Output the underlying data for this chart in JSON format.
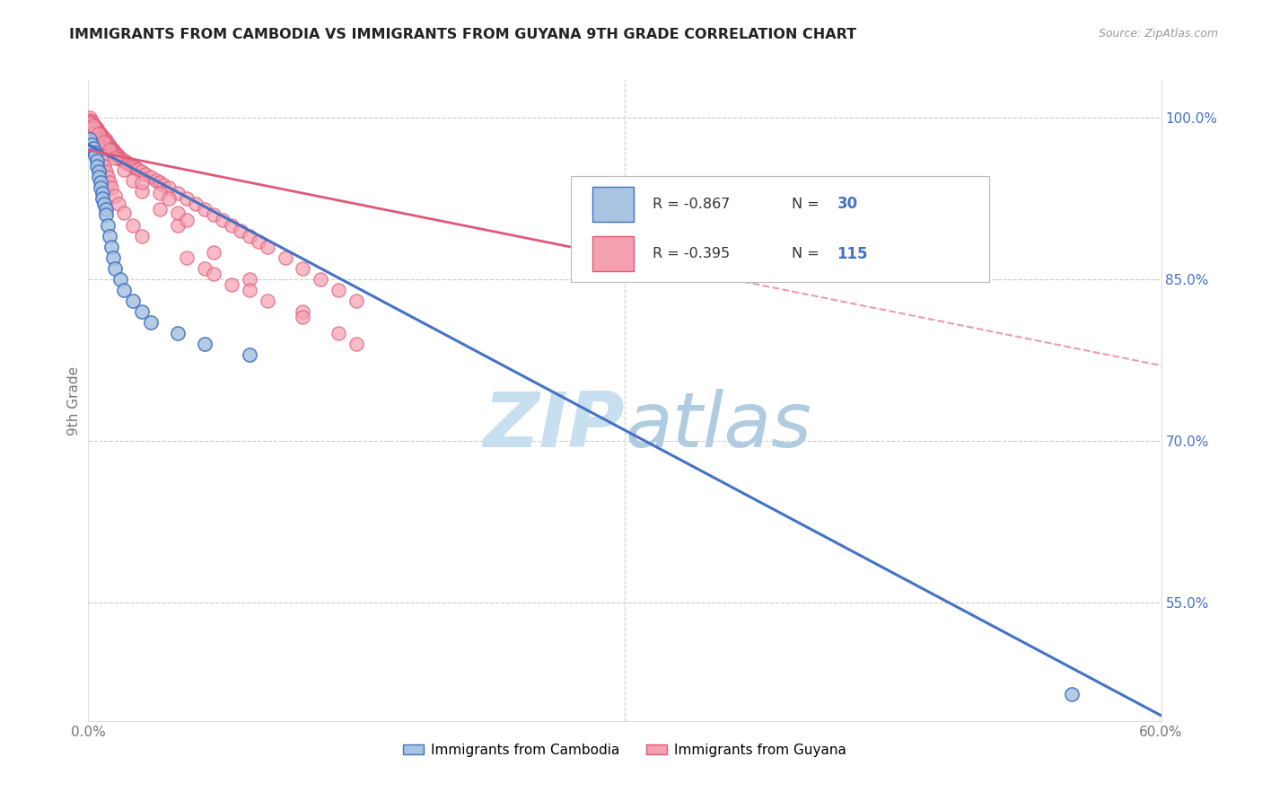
{
  "title": "IMMIGRANTS FROM CAMBODIA VS IMMIGRANTS FROM GUYANA 9TH GRADE CORRELATION CHART",
  "source": "Source: ZipAtlas.com",
  "ylabel": "9th Grade",
  "xlim": [
    0.0,
    0.6
  ],
  "ylim": [
    0.44,
    1.035
  ],
  "xtick_positions": [
    0.0,
    0.1,
    0.2,
    0.3,
    0.4,
    0.5,
    0.6
  ],
  "xticklabels": [
    "0.0%",
    "",
    "",
    "",
    "",
    "",
    "60.0%"
  ],
  "yticks_right": [
    0.55,
    0.7,
    0.85,
    1.0
  ],
  "yticks_right_labels": [
    "55.0%",
    "70.0%",
    "85.0%",
    "100.0%"
  ],
  "legend_entries": [
    {
      "label": "R = -0.867",
      "N": "30",
      "color_face": "#a8c4e0",
      "color_edge": "#4472c4"
    },
    {
      "label": "R = -0.395",
      "N": "115",
      "color_face": "#f4a0b0",
      "color_edge": "#e05878"
    }
  ],
  "color_cambodia_face": "#a8c4e0",
  "color_cambodia_edge": "#4472c4",
  "color_guyana_face": "#f4a0b0",
  "color_guyana_edge": "#e05878",
  "color_cambodia_line": "#4472c4",
  "color_guyana_line": "#e05878",
  "color_right_axis": "#4472c4",
  "watermark_color": "#dceef8",
  "background_color": "#ffffff",
  "grid_color": "#cccccc",
  "scatter_size": 120,
  "line_y0_cambodia": 0.975,
  "line_y1_cambodia": 0.445,
  "line_y0_guyana": 0.97,
  "line_y1_guyana": 0.77,
  "line_solid_end_guyana": 0.35,
  "cambodia_x": [
    0.001,
    0.002,
    0.003,
    0.004,
    0.004,
    0.005,
    0.005,
    0.006,
    0.006,
    0.007,
    0.007,
    0.008,
    0.008,
    0.009,
    0.01,
    0.01,
    0.011,
    0.012,
    0.013,
    0.014,
    0.015,
    0.018,
    0.02,
    0.025,
    0.03,
    0.035,
    0.05,
    0.065,
    0.09,
    0.55
  ],
  "cambodia_y": [
    0.98,
    0.975,
    0.972,
    0.968,
    0.965,
    0.96,
    0.955,
    0.95,
    0.945,
    0.94,
    0.935,
    0.93,
    0.925,
    0.92,
    0.915,
    0.91,
    0.9,
    0.89,
    0.88,
    0.87,
    0.86,
    0.85,
    0.84,
    0.83,
    0.82,
    0.81,
    0.8,
    0.79,
    0.78,
    0.465
  ],
  "guyana_x": [
    0.001,
    0.001,
    0.002,
    0.002,
    0.003,
    0.003,
    0.004,
    0.004,
    0.005,
    0.005,
    0.005,
    0.006,
    0.006,
    0.007,
    0.007,
    0.008,
    0.008,
    0.009,
    0.009,
    0.01,
    0.01,
    0.01,
    0.011,
    0.011,
    0.012,
    0.012,
    0.013,
    0.013,
    0.014,
    0.014,
    0.015,
    0.015,
    0.016,
    0.016,
    0.017,
    0.018,
    0.018,
    0.019,
    0.02,
    0.021,
    0.022,
    0.023,
    0.024,
    0.025,
    0.026,
    0.027,
    0.028,
    0.03,
    0.032,
    0.035,
    0.038,
    0.04,
    0.042,
    0.045,
    0.05,
    0.055,
    0.06,
    0.065,
    0.07,
    0.075,
    0.08,
    0.085,
    0.09,
    0.095,
    0.1,
    0.11,
    0.12,
    0.13,
    0.14,
    0.15,
    0.001,
    0.002,
    0.003,
    0.004,
    0.005,
    0.006,
    0.007,
    0.008,
    0.009,
    0.01,
    0.011,
    0.012,
    0.013,
    0.015,
    0.017,
    0.02,
    0.025,
    0.03,
    0.003,
    0.006,
    0.009,
    0.012,
    0.015,
    0.02,
    0.025,
    0.03,
    0.04,
    0.05,
    0.07,
    0.09,
    0.12,
    0.15,
    0.03,
    0.04,
    0.045,
    0.05,
    0.055,
    0.055,
    0.065,
    0.08,
    0.07,
    0.09,
    0.1,
    0.12,
    0.14
  ],
  "guyana_y": [
    1.0,
    0.998,
    0.997,
    0.995,
    0.994,
    0.993,
    0.992,
    0.991,
    0.99,
    0.989,
    0.988,
    0.987,
    0.986,
    0.985,
    0.984,
    0.983,
    0.982,
    0.981,
    0.98,
    0.979,
    0.978,
    0.977,
    0.976,
    0.975,
    0.974,
    0.973,
    0.972,
    0.971,
    0.97,
    0.969,
    0.968,
    0.967,
    0.966,
    0.965,
    0.964,
    0.963,
    0.962,
    0.961,
    0.96,
    0.959,
    0.958,
    0.957,
    0.956,
    0.955,
    0.954,
    0.953,
    0.952,
    0.95,
    0.948,
    0.945,
    0.942,
    0.94,
    0.938,
    0.935,
    0.93,
    0.925,
    0.92,
    0.915,
    0.91,
    0.905,
    0.9,
    0.895,
    0.89,
    0.885,
    0.88,
    0.87,
    0.86,
    0.85,
    0.84,
    0.83,
    0.995,
    0.99,
    0.985,
    0.98,
    0.975,
    0.97,
    0.965,
    0.96,
    0.955,
    0.95,
    0.945,
    0.94,
    0.935,
    0.928,
    0.92,
    0.912,
    0.9,
    0.89,
    0.993,
    0.985,
    0.978,
    0.97,
    0.963,
    0.952,
    0.942,
    0.932,
    0.915,
    0.9,
    0.875,
    0.85,
    0.82,
    0.79,
    0.94,
    0.93,
    0.925,
    0.912,
    0.905,
    0.87,
    0.86,
    0.845,
    0.855,
    0.84,
    0.83,
    0.815,
    0.8
  ]
}
